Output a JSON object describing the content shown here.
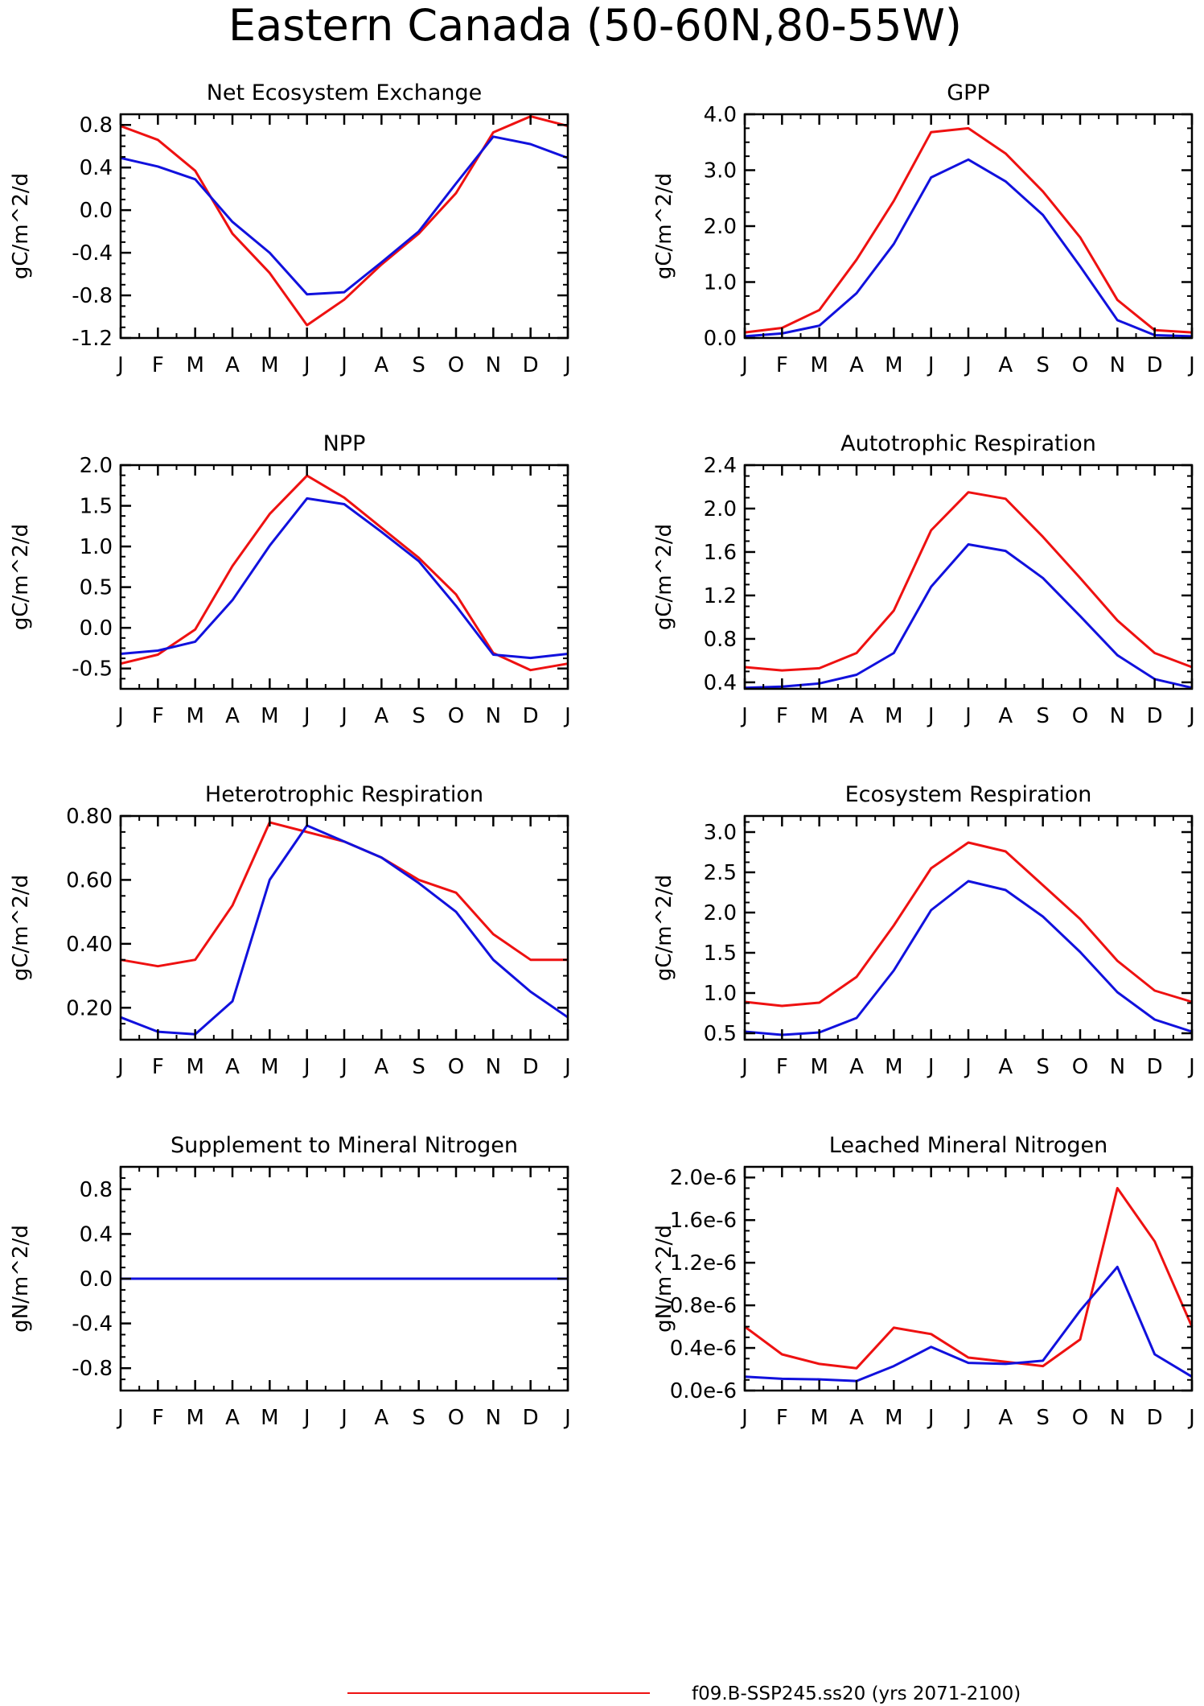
{
  "title": "Eastern Canada (50-60N,80-55W)",
  "legend": [
    {
      "label": "f09.B-SSP245.ss20 (yrs 2071-2100)",
      "color": "#ee1111"
    }
  ],
  "series_colors": [
    "#ee1111",
    "#1111dd"
  ],
  "chart_data": [
    {
      "type": "line",
      "title": "Net Ecosystem Exchange",
      "ylabel": "gC/m^2/d",
      "categories": [
        "J",
        "F",
        "M",
        "A",
        "M",
        "J",
        "J",
        "A",
        "S",
        "O",
        "N",
        "D",
        "J"
      ],
      "ylim": [
        -1.2,
        0.9
      ],
      "yticks": [
        -1.2,
        -0.8,
        -0.4,
        0.0,
        0.4,
        0.8
      ],
      "yticklabels": [
        "-1.2",
        "-0.8",
        "-0.4",
        "0.0",
        "0.4",
        "0.8"
      ],
      "series": [
        {
          "values": [
            0.79,
            0.66,
            0.37,
            -0.22,
            -0.59,
            -1.08,
            -0.84,
            -0.51,
            -0.22,
            0.16,
            0.73,
            0.88,
            0.79
          ]
        },
        {
          "values": [
            0.49,
            0.41,
            0.29,
            -0.11,
            -0.4,
            -0.79,
            -0.77,
            -0.49,
            -0.2,
            0.25,
            0.69,
            0.62,
            0.49
          ]
        }
      ]
    },
    {
      "type": "line",
      "title": "GPP",
      "ylabel": "gC/m^2/d",
      "categories": [
        "J",
        "F",
        "M",
        "A",
        "M",
        "J",
        "J",
        "A",
        "S",
        "O",
        "N",
        "D",
        "J"
      ],
      "ylim": [
        0.0,
        4.0
      ],
      "yticks": [
        0.0,
        1.0,
        2.0,
        3.0,
        4.0
      ],
      "yticklabels": [
        "0.0",
        "1.0",
        "2.0",
        "3.0",
        "4.0"
      ],
      "series": [
        {
          "values": [
            0.1,
            0.18,
            0.5,
            1.4,
            2.45,
            3.68,
            3.75,
            3.3,
            2.62,
            1.8,
            0.68,
            0.14,
            0.1
          ]
        },
        {
          "values": [
            0.03,
            0.08,
            0.22,
            0.8,
            1.68,
            2.87,
            3.19,
            2.8,
            2.2,
            1.28,
            0.32,
            0.05,
            0.03
          ]
        }
      ]
    },
    {
      "type": "line",
      "title": "NPP",
      "ylabel": "gC/m^2/d",
      "categories": [
        "J",
        "F",
        "M",
        "A",
        "M",
        "J",
        "J",
        "A",
        "S",
        "O",
        "N",
        "D",
        "J"
      ],
      "ylim": [
        -0.75,
        2.0
      ],
      "yticks": [
        -0.5,
        0.0,
        0.5,
        1.0,
        1.5,
        2.0
      ],
      "yticklabels": [
        "-0.5",
        "0.0",
        "0.5",
        "1.0",
        "1.5",
        "2.0"
      ],
      "series": [
        {
          "values": [
            -0.44,
            -0.33,
            -0.02,
            0.76,
            1.4,
            1.87,
            1.6,
            1.23,
            0.86,
            0.41,
            -0.31,
            -0.52,
            -0.44
          ]
        },
        {
          "values": [
            -0.32,
            -0.28,
            -0.17,
            0.34,
            1.01,
            1.59,
            1.52,
            1.18,
            0.82,
            0.27,
            -0.33,
            -0.37,
            -0.32
          ]
        }
      ]
    },
    {
      "type": "line",
      "title": "Autotrophic Respiration",
      "ylabel": "gC/m^2/d",
      "categories": [
        "J",
        "F",
        "M",
        "A",
        "M",
        "J",
        "J",
        "A",
        "S",
        "O",
        "N",
        "D",
        "J"
      ],
      "ylim": [
        0.34,
        2.4
      ],
      "yticks": [
        0.4,
        0.8,
        1.2,
        1.6,
        2.0,
        2.4
      ],
      "yticklabels": [
        "0.4",
        "0.8",
        "1.2",
        "1.6",
        "2.0",
        "2.4"
      ],
      "series": [
        {
          "values": [
            0.54,
            0.51,
            0.53,
            0.67,
            1.06,
            1.8,
            2.15,
            2.09,
            1.74,
            1.36,
            0.97,
            0.67,
            0.54
          ]
        },
        {
          "values": [
            0.35,
            0.36,
            0.39,
            0.47,
            0.67,
            1.28,
            1.67,
            1.61,
            1.36,
            1.01,
            0.65,
            0.43,
            0.35
          ]
        }
      ]
    },
    {
      "type": "line",
      "title": "Heterotrophic Respiration",
      "ylabel": "gC/m^2/d",
      "categories": [
        "J",
        "F",
        "M",
        "A",
        "M",
        "J",
        "J",
        "A",
        "S",
        "O",
        "N",
        "D",
        "J"
      ],
      "ylim": [
        0.1,
        0.8
      ],
      "yticks": [
        0.2,
        0.4,
        0.6,
        0.8
      ],
      "yticklabels": [
        "0.20",
        "0.40",
        "0.60",
        "0.80"
      ],
      "series": [
        {
          "values": [
            0.35,
            0.33,
            0.35,
            0.52,
            0.78,
            0.75,
            0.72,
            0.67,
            0.6,
            0.56,
            0.43,
            0.35,
            0.35
          ]
        },
        {
          "values": [
            0.17,
            0.125,
            0.117,
            0.22,
            0.6,
            0.77,
            0.72,
            0.67,
            0.59,
            0.5,
            0.35,
            0.25,
            0.17
          ]
        }
      ]
    },
    {
      "type": "line",
      "title": "Ecosystem Respiration",
      "ylabel": "gC/m^2/d",
      "categories": [
        "J",
        "F",
        "M",
        "A",
        "M",
        "J",
        "J",
        "A",
        "S",
        "O",
        "N",
        "D",
        "J"
      ],
      "ylim": [
        0.42,
        3.2
      ],
      "yticks": [
        0.5,
        1.0,
        1.5,
        2.0,
        2.5,
        3.0
      ],
      "yticklabels": [
        "0.5",
        "1.0",
        "1.5",
        "2.0",
        "2.5",
        "3.0"
      ],
      "series": [
        {
          "values": [
            0.89,
            0.84,
            0.88,
            1.2,
            1.84,
            2.55,
            2.87,
            2.76,
            2.34,
            1.92,
            1.4,
            1.03,
            0.89
          ]
        },
        {
          "values": [
            0.52,
            0.48,
            0.51,
            0.69,
            1.28,
            2.03,
            2.39,
            2.28,
            1.95,
            1.51,
            1.01,
            0.67,
            0.52
          ]
        }
      ]
    },
    {
      "type": "line",
      "title": "Supplement to Mineral Nitrogen",
      "ylabel": "gN/m^2/d",
      "categories": [
        "J",
        "F",
        "M",
        "A",
        "M",
        "J",
        "J",
        "A",
        "S",
        "O",
        "N",
        "D",
        "J"
      ],
      "ylim": [
        -1.0,
        1.0
      ],
      "yticks": [
        -0.8,
        -0.4,
        0.0,
        0.4,
        0.8
      ],
      "yticklabels": [
        "-0.8",
        "-0.4",
        "0.0",
        "0.4",
        "0.8"
      ],
      "series": [
        {
          "values": [
            0,
            0,
            0,
            0,
            0,
            0,
            0,
            0,
            0,
            0,
            0,
            0,
            0
          ]
        },
        {
          "values": [
            0,
            0,
            0,
            0,
            0,
            0,
            0,
            0,
            0,
            0,
            0,
            0,
            0
          ]
        }
      ]
    },
    {
      "type": "line",
      "title": "Leached Mineral Nitrogen",
      "ylabel": "gN/m^2/d",
      "categories": [
        "J",
        "F",
        "M",
        "A",
        "M",
        "J",
        "J",
        "A",
        "S",
        "O",
        "N",
        "D",
        "J"
      ],
      "ylim": [
        0.0,
        2.1e-06
      ],
      "yticks": [
        0.0,
        4e-07,
        8e-07,
        1.2e-06,
        1.6e-06,
        2e-06
      ],
      "yticklabels": [
        "0.0e-6",
        "0.4e-6",
        "0.8e-6",
        "1.2e-6",
        "1.6e-6",
        "2.0e-6"
      ],
      "series": [
        {
          "values": [
            6e-07,
            3.4e-07,
            2.5e-07,
            2.1e-07,
            5.9e-07,
            5.3e-07,
            3.1e-07,
            2.7e-07,
            2.3e-07,
            4.8e-07,
            1.9e-06,
            1.4e-06,
            6e-07
          ]
        },
        {
          "values": [
            1.3e-07,
            1.1e-07,
            1.05e-07,
            9e-08,
            2.3e-07,
            4.1e-07,
            2.6e-07,
            2.5e-07,
            2.8e-07,
            7.5e-07,
            1.16e-06,
            3.4e-07,
            1.3e-07
          ]
        }
      ]
    }
  ]
}
